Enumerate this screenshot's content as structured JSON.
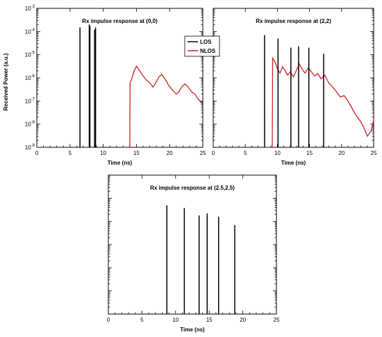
{
  "y_axis_label": "Received Power (a.u.)",
  "legend": [
    {
      "label": "LOS",
      "color": "#000000"
    },
    {
      "label": "NLOS",
      "color": "#cc2222"
    }
  ],
  "chart_data": [
    {
      "type": "line",
      "title": "Rx impulse response at (0,0)",
      "xlabel": "Time (ns)",
      "ylabel": "Received Power (a.u.)",
      "xlim": [
        0,
        25
      ],
      "ylim_exp": [
        -9,
        -3
      ],
      "yscale": "log",
      "x_ticks": [
        0,
        5,
        10,
        15,
        20,
        25
      ],
      "y_tick_exponents": [
        -9,
        -8,
        -7,
        -6,
        -5,
        -4,
        -3
      ],
      "los_impulses": [
        {
          "t": 6.5,
          "p": 0.00015
        },
        {
          "t": 7.9,
          "p": 0.0002
        },
        {
          "t": 8.0,
          "p": 0.00017
        },
        {
          "t": 8.7,
          "p": 0.00012
        },
        {
          "t": 8.85,
          "p": 0.00015
        }
      ],
      "nlos_series": [
        [
          14.0,
          1e-09
        ],
        [
          14.05,
          6e-07
        ],
        [
          14.3,
          9e-07
        ],
        [
          14.6,
          1.8e-06
        ],
        [
          15.0,
          3.2e-06
        ],
        [
          15.4,
          2.2e-06
        ],
        [
          16.0,
          1.2e-06
        ],
        [
          16.5,
          8e-07
        ],
        [
          17.0,
          6e-07
        ],
        [
          17.5,
          4e-07
        ],
        [
          17.9,
          6e-07
        ],
        [
          18.4,
          1.1e-06
        ],
        [
          18.8,
          1.4e-06
        ],
        [
          19.3,
          9e-07
        ],
        [
          19.8,
          5e-07
        ],
        [
          20.4,
          3e-07
        ],
        [
          21.0,
          2e-07
        ],
        [
          21.4,
          2.5e-07
        ],
        [
          21.8,
          4e-07
        ],
        [
          22.3,
          5.5e-07
        ],
        [
          22.8,
          4e-07
        ],
        [
          23.3,
          2.5e-07
        ],
        [
          23.8,
          2e-07
        ],
        [
          24.3,
          1.2e-07
        ],
        [
          25.0,
          7e-08
        ]
      ]
    },
    {
      "type": "line",
      "title": "Rx impulse response at (2,2)",
      "xlabel": "Time (ns)",
      "ylabel": "",
      "xlim": [
        0,
        25
      ],
      "ylim_exp": [
        -9,
        -3
      ],
      "yscale": "log",
      "x_ticks": [
        0,
        5,
        10,
        15,
        20,
        25
      ],
      "y_tick_exponents": [
        -9,
        -8,
        -7,
        -6,
        -5,
        -4,
        -3
      ],
      "los_impulses": [
        {
          "t": 8.0,
          "p": 7e-05
        },
        {
          "t": 10.1,
          "p": 5e-05
        },
        {
          "t": 12.1,
          "p": 2e-05
        },
        {
          "t": 13.3,
          "p": 2.3e-05
        },
        {
          "t": 14.9,
          "p": 2e-05
        },
        {
          "t": 17.2,
          "p": 1.1e-05
        }
      ],
      "nlos_series": [
        [
          9.2,
          1e-09
        ],
        [
          9.25,
          7e-06
        ],
        [
          9.6,
          5e-06
        ],
        [
          10.0,
          2.5e-06
        ],
        [
          10.4,
          1.6e-06
        ],
        [
          10.8,
          3e-06
        ],
        [
          11.2,
          2e-06
        ],
        [
          11.6,
          1.3e-06
        ],
        [
          12.0,
          1.8e-06
        ],
        [
          12.5,
          1.1e-06
        ],
        [
          13.0,
          2.2e-06
        ],
        [
          13.4,
          4e-06
        ],
        [
          13.8,
          2.5e-06
        ],
        [
          14.3,
          1.6e-06
        ],
        [
          14.8,
          2.6e-06
        ],
        [
          15.3,
          1.8e-06
        ],
        [
          15.8,
          1.2e-06
        ],
        [
          16.3,
          1.5e-06
        ],
        [
          16.8,
          9e-07
        ],
        [
          17.4,
          1.3e-06
        ],
        [
          18.0,
          6e-07
        ],
        [
          18.6,
          4e-07
        ],
        [
          19.2,
          2.5e-07
        ],
        [
          19.8,
          1.5e-07
        ],
        [
          20.4,
          1.7e-07
        ],
        [
          21.0,
          1e-07
        ],
        [
          21.6,
          5e-08
        ],
        [
          22.2,
          2.5e-08
        ],
        [
          22.8,
          1.5e-08
        ],
        [
          23.4,
          8e-09
        ],
        [
          24.0,
          3e-09
        ],
        [
          24.6,
          5e-09
        ],
        [
          25.0,
          1.5e-08
        ]
      ]
    },
    {
      "type": "line",
      "title": "Rx impulse response at (2.5,2.5)",
      "xlabel": "Time (ns)",
      "ylabel": "",
      "xlim": [
        0,
        25
      ],
      "ylim_exp": [
        -9,
        -3
      ],
      "yscale": "log",
      "x_ticks": [
        0,
        5,
        10,
        15,
        20,
        25
      ],
      "y_tick_exponents": [
        -9,
        -8,
        -7,
        -6,
        -5,
        -4,
        -3
      ],
      "los_impulses": [
        {
          "t": 8.7,
          "p": 5e-05
        },
        {
          "t": 11.3,
          "p": 3.8e-05
        },
        {
          "t": 13.5,
          "p": 1.8e-05
        },
        {
          "t": 14.7,
          "p": 2.2e-05
        },
        {
          "t": 16.4,
          "p": 1.6e-05
        },
        {
          "t": 18.8,
          "p": 7e-06
        }
      ],
      "nlos_series": []
    }
  ]
}
